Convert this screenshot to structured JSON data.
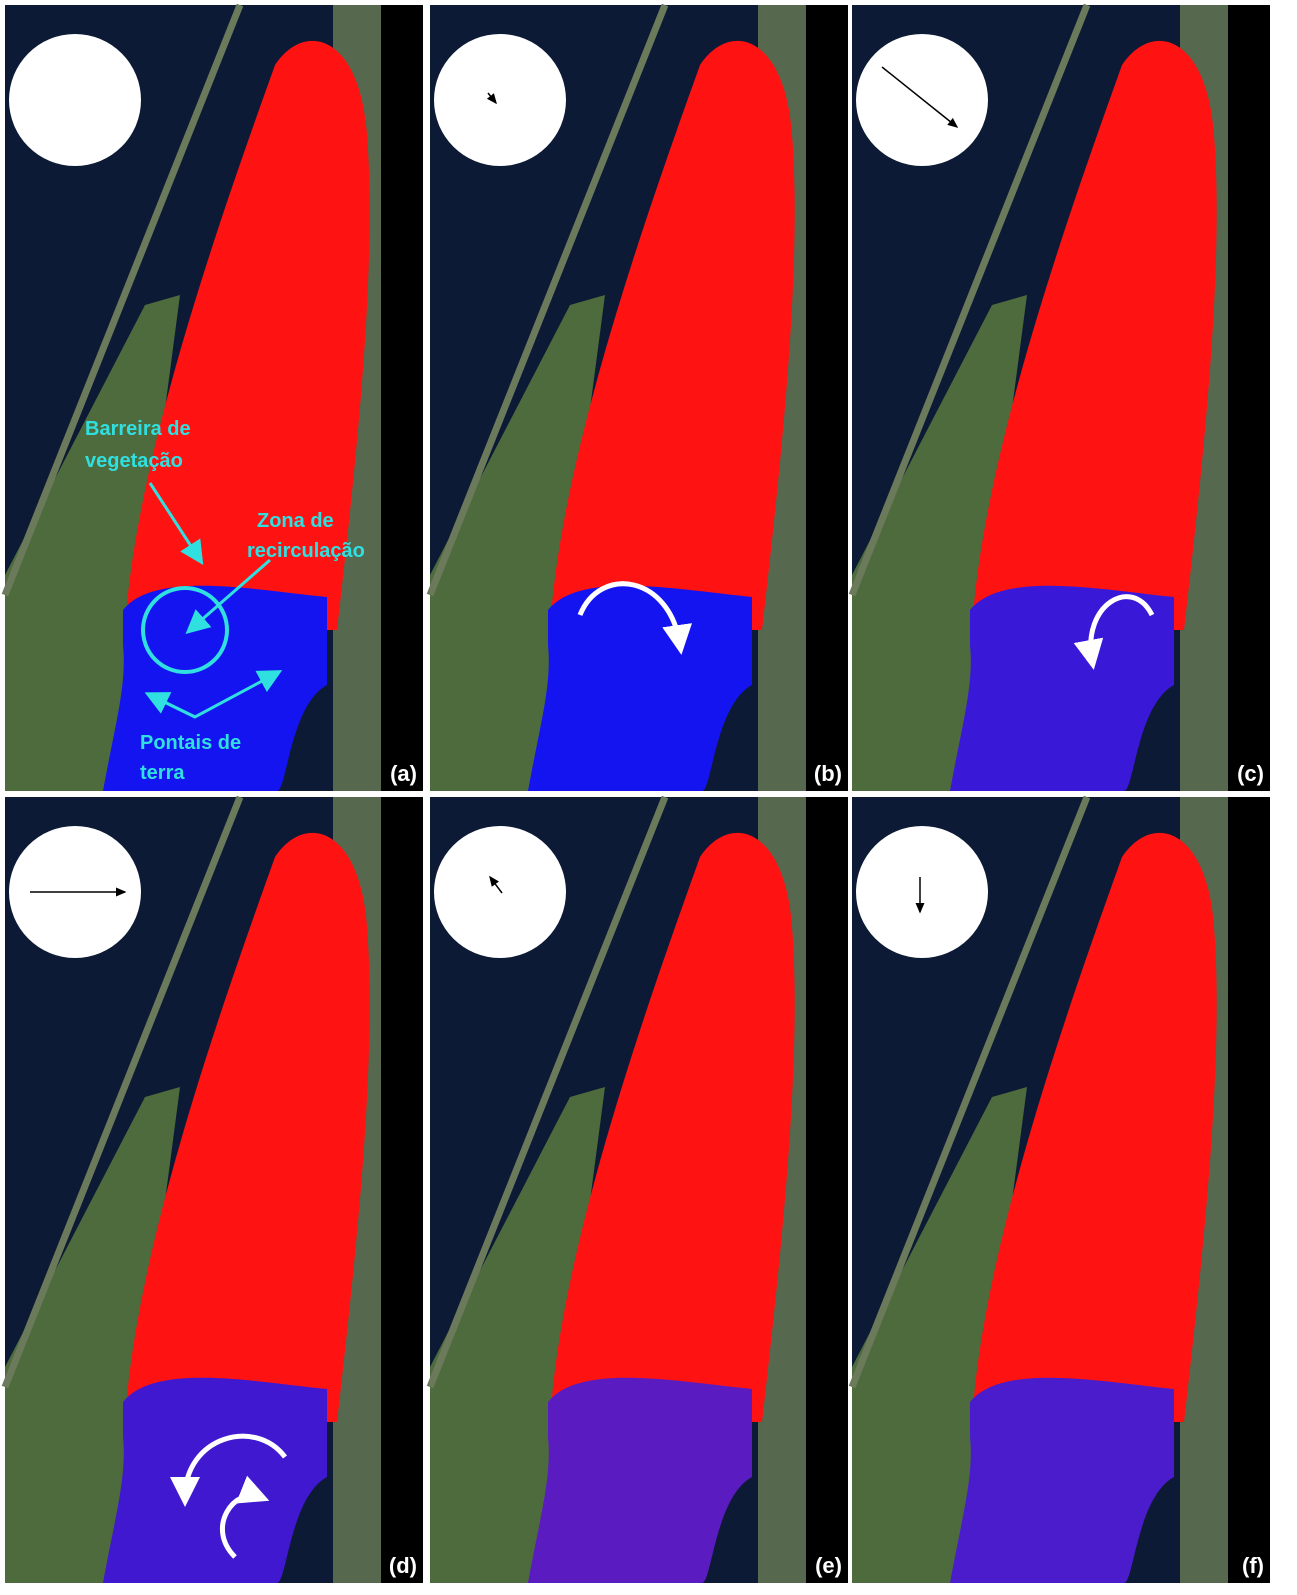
{
  "panels": [
    {
      "label": "(a)"
    },
    {
      "label": "(b)"
    },
    {
      "label": "(c)"
    },
    {
      "label": "(d)"
    },
    {
      "label": "(e)"
    },
    {
      "label": "(f)"
    }
  ],
  "annotations": {
    "barrier": [
      "Barreira de",
      "vegetação"
    ],
    "recirculation": [
      "Zona de",
      "recirculação"
    ],
    "points": [
      "Pontais de",
      "terra"
    ]
  }
}
